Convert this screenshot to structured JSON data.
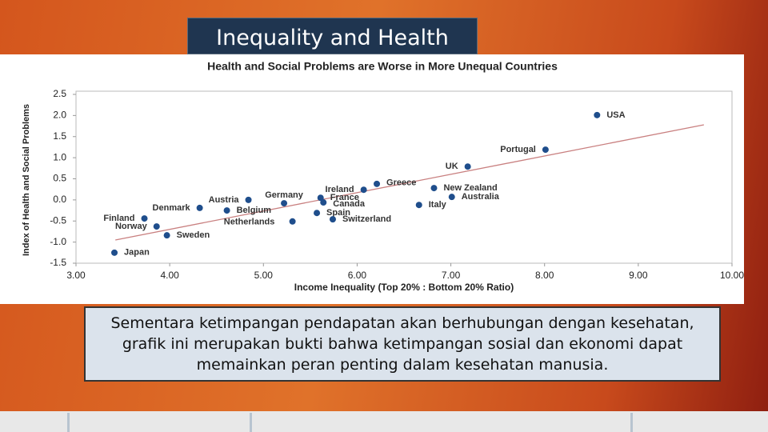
{
  "slide": {
    "title": "Inequality and Health",
    "caption": "Sementara ketimpangan pendapatan akan berhubungan dengan kesehatan, grafik ini merupakan bukti bahwa ketimpangan sosial dan ekonomi dapat memainkan peran penting dalam kesehatan manusia."
  },
  "chart_data": {
    "type": "scatter",
    "title": "Health and Social Problems are Worse in More Unequal Countries",
    "x_label": "Income Inequality (Top 20% : Bottom 20% Ratio)",
    "y_label": "Index of Health and Social Problems",
    "color": "#1f4e8c",
    "trend_color": "#c98080",
    "trendline": {
      "x": [
        3.42,
        9.7
      ],
      "y": [
        -0.95,
        1.78
      ]
    },
    "points": [
      {
        "name": "USA",
        "x": 8.56,
        "y": 2.01
      },
      {
        "name": "Portugal",
        "x": 8.01,
        "y": 1.19
      },
      {
        "name": "UK",
        "x": 7.18,
        "y": 0.79
      },
      {
        "name": "Ireland",
        "x": 6.07,
        "y": 0.24
      },
      {
        "name": "Greece",
        "x": 6.21,
        "y": 0.38
      },
      {
        "name": "New Zealand",
        "x": 6.82,
        "y": 0.28
      },
      {
        "name": "Australia",
        "x": 7.01,
        "y": 0.07
      },
      {
        "name": "Italy",
        "x": 6.66,
        "y": -0.12
      },
      {
        "name": "France",
        "x": 5.61,
        "y": 0.05
      },
      {
        "name": "Canada",
        "x": 5.64,
        "y": -0.06
      },
      {
        "name": "Spain",
        "x": 5.57,
        "y": -0.31
      },
      {
        "name": "Switzerland",
        "x": 5.74,
        "y": -0.46
      },
      {
        "name": "Germany",
        "x": 5.22,
        "y": -0.08
      },
      {
        "name": "Austria",
        "x": 4.84,
        "y": 0.0
      },
      {
        "name": "Belgium",
        "x": 4.61,
        "y": -0.25
      },
      {
        "name": "Netherlands",
        "x": 5.31,
        "y": -0.51
      },
      {
        "name": "Denmark",
        "x": 4.32,
        "y": -0.19
      },
      {
        "name": "Finland",
        "x": 3.73,
        "y": -0.44
      },
      {
        "name": "Norway",
        "x": 3.86,
        "y": -0.63
      },
      {
        "name": "Sweden",
        "x": 3.97,
        "y": -0.84
      },
      {
        "name": "Japan",
        "x": 3.41,
        "y": -1.25
      }
    ],
    "xlim": [
      3,
      10
    ],
    "xticks": [
      {
        "value": 3,
        "label": "3.00"
      },
      {
        "value": 4,
        "label": "4.00"
      },
      {
        "value": 5,
        "label": "5.00"
      },
      {
        "value": 6,
        "label": "6.00"
      },
      {
        "value": 7,
        "label": "7.00"
      },
      {
        "value": 8,
        "label": "8.00"
      },
      {
        "value": 9,
        "label": "9.00"
      },
      {
        "value": 10,
        "label": "10.00"
      }
    ],
    "ylim": [
      -1.5,
      2.5
    ],
    "yticks": [
      {
        "value": 2.5,
        "label": "2.5"
      },
      {
        "value": 2,
        "label": "2.0"
      },
      {
        "value": 1.5,
        "label": "1.5"
      },
      {
        "value": 1,
        "label": "1.0"
      },
      {
        "value": 0.5,
        "label": "0.5"
      },
      {
        "value": 0,
        "label": "0.0"
      },
      {
        "value": -0.5,
        "label": "-0.5"
      },
      {
        "value": -1,
        "label": "-1.0"
      },
      {
        "value": -1.5,
        "label": "-1.5"
      }
    ]
  }
}
